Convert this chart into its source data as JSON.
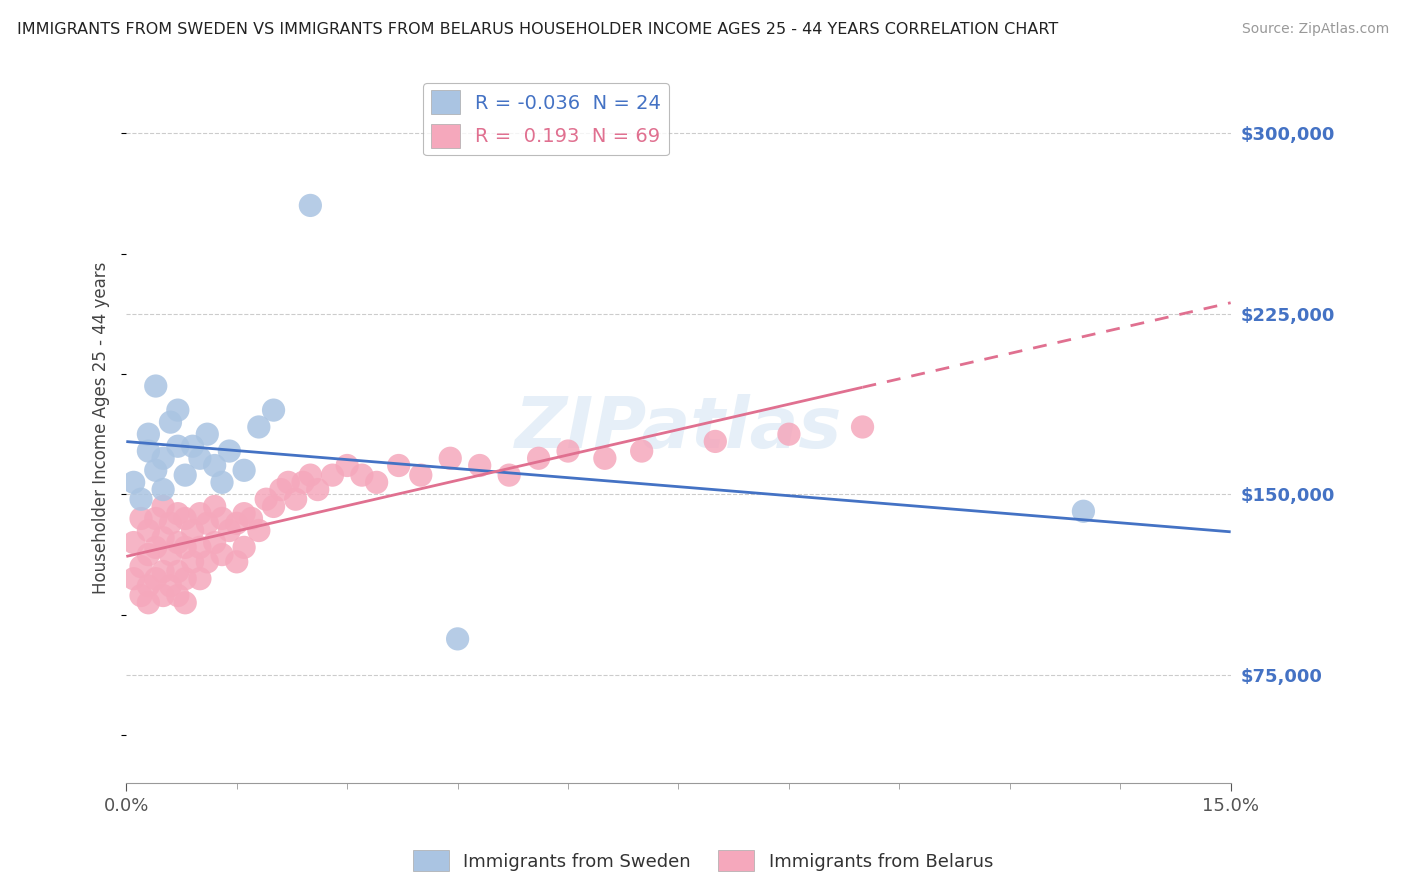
{
  "title": "IMMIGRANTS FROM SWEDEN VS IMMIGRANTS FROM BELARUS HOUSEHOLDER INCOME AGES 25 - 44 YEARS CORRELATION CHART",
  "source": "Source: ZipAtlas.com",
  "ylabel": "Householder Income Ages 25 - 44 years",
  "xlim": [
    0,
    0.15
  ],
  "ylim": [
    30000,
    325000
  ],
  "yticks": [
    75000,
    150000,
    225000,
    300000
  ],
  "xtick_left_label": "0.0%",
  "xtick_right_label": "15.0%",
  "ytick_labels": [
    "$75,000",
    "$150,000",
    "$225,000",
    "$300,000"
  ],
  "sweden_color": "#aac4e2",
  "belarus_color": "#f5a8bc",
  "sweden_line_color": "#4472c4",
  "belarus_line_color": "#e07090",
  "sweden_R": -0.036,
  "sweden_N": 24,
  "belarus_R": 0.193,
  "belarus_N": 69,
  "background_color": "#ffffff",
  "grid_color": "#cccccc",
  "sweden_x": [
    0.001,
    0.002,
    0.003,
    0.003,
    0.004,
    0.004,
    0.005,
    0.005,
    0.006,
    0.007,
    0.007,
    0.008,
    0.009,
    0.01,
    0.011,
    0.012,
    0.013,
    0.014,
    0.016,
    0.018,
    0.02,
    0.025,
    0.045,
    0.13
  ],
  "sweden_y": [
    155000,
    148000,
    168000,
    175000,
    160000,
    195000,
    152000,
    165000,
    180000,
    170000,
    185000,
    158000,
    170000,
    165000,
    175000,
    162000,
    155000,
    168000,
    160000,
    178000,
    185000,
    270000,
    90000,
    143000
  ],
  "belarus_x": [
    0.001,
    0.001,
    0.002,
    0.002,
    0.002,
    0.003,
    0.003,
    0.003,
    0.003,
    0.004,
    0.004,
    0.004,
    0.005,
    0.005,
    0.005,
    0.005,
    0.006,
    0.006,
    0.006,
    0.007,
    0.007,
    0.007,
    0.007,
    0.008,
    0.008,
    0.008,
    0.008,
    0.009,
    0.009,
    0.01,
    0.01,
    0.01,
    0.011,
    0.011,
    0.012,
    0.012,
    0.013,
    0.013,
    0.014,
    0.015,
    0.015,
    0.016,
    0.016,
    0.017,
    0.018,
    0.019,
    0.02,
    0.021,
    0.022,
    0.023,
    0.024,
    0.025,
    0.026,
    0.028,
    0.03,
    0.032,
    0.034,
    0.037,
    0.04,
    0.044,
    0.048,
    0.052,
    0.056,
    0.06,
    0.065,
    0.07,
    0.08,
    0.09,
    0.1
  ],
  "belarus_y": [
    130000,
    115000,
    140000,
    120000,
    108000,
    135000,
    125000,
    112000,
    105000,
    140000,
    128000,
    115000,
    145000,
    132000,
    118000,
    108000,
    138000,
    125000,
    112000,
    142000,
    130000,
    118000,
    108000,
    140000,
    128000,
    115000,
    105000,
    135000,
    122000,
    142000,
    128000,
    115000,
    138000,
    122000,
    145000,
    130000,
    140000,
    125000,
    135000,
    138000,
    122000,
    142000,
    128000,
    140000,
    135000,
    148000,
    145000,
    152000,
    155000,
    148000,
    155000,
    158000,
    152000,
    158000,
    162000,
    158000,
    155000,
    162000,
    158000,
    165000,
    162000,
    158000,
    165000,
    168000,
    165000,
    168000,
    172000,
    175000,
    178000
  ],
  "minor_xticks": [
    0.015,
    0.03,
    0.045,
    0.06,
    0.075,
    0.09,
    0.105,
    0.12,
    0.135
  ]
}
